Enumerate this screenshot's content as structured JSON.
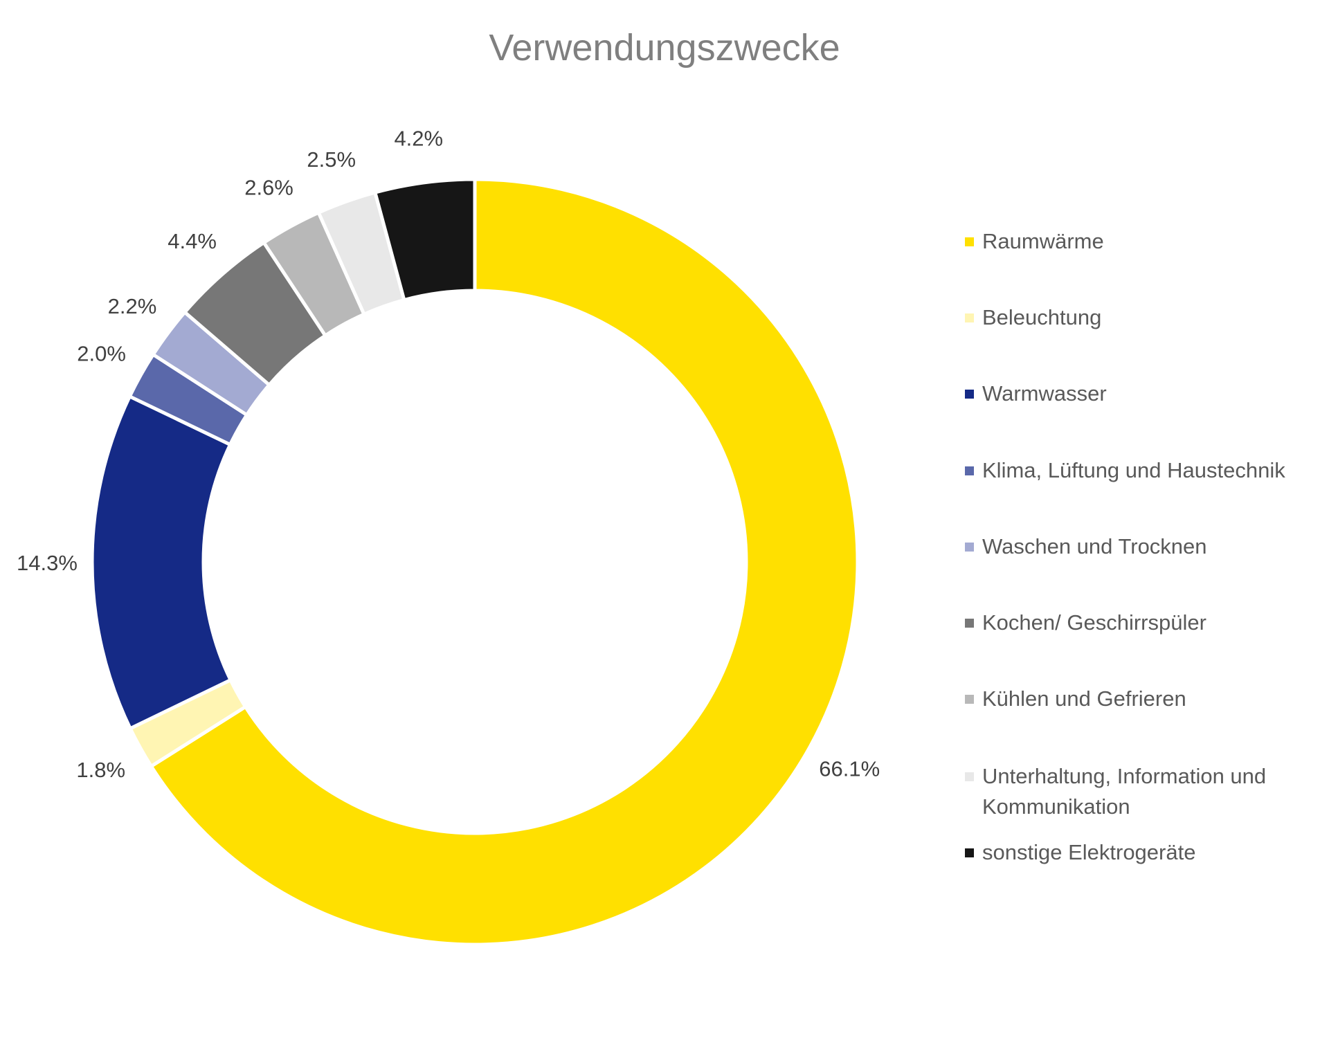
{
  "chart_data": {
    "type": "pie",
    "variant": "doughnut",
    "title": "Verwendungszwecke",
    "legend_position": "right",
    "categories": [
      "Raumwärme",
      "Beleuchtung",
      "Warmwasser",
      "Klima, Lüftung und Haustechnik",
      "Waschen und Trocknen",
      "Kochen/ Geschirrspüler",
      "Kühlen und Gefrieren",
      "Unterhaltung, Information und Kommunikation",
      "sonstige Elektrogeräte"
    ],
    "values": [
      66.1,
      1.8,
      14.3,
      2.0,
      2.2,
      4.4,
      2.6,
      2.5,
      4.2
    ],
    "data_labels": [
      "66.1%",
      "1.8%",
      "14.3%",
      "2.0%",
      "2.2%",
      "4.4%",
      "2.6%",
      "2.5%",
      "4.2%"
    ],
    "colors": [
      "#FFE000",
      "#FFF5B3",
      "#152A86",
      "#5A68AA",
      "#A3AAD2",
      "#777777",
      "#B8B8B8",
      "#E8E8E8",
      "#161616"
    ]
  },
  "legend": {
    "lines": [
      [
        "Raumwärme"
      ],
      [
        "Beleuchtung"
      ],
      [
        "Warmwasser"
      ],
      [
        "Klima, Lüftung und Haustechnik"
      ],
      [
        "Waschen und Trocknen"
      ],
      [
        "Kochen/ Geschirrspüler"
      ],
      [
        "Kühlen und Gefrieren"
      ],
      [
        "Unterhaltung, Information und",
        "Kommunikation"
      ],
      [
        "sonstige Elektrogeräte"
      ]
    ]
  }
}
